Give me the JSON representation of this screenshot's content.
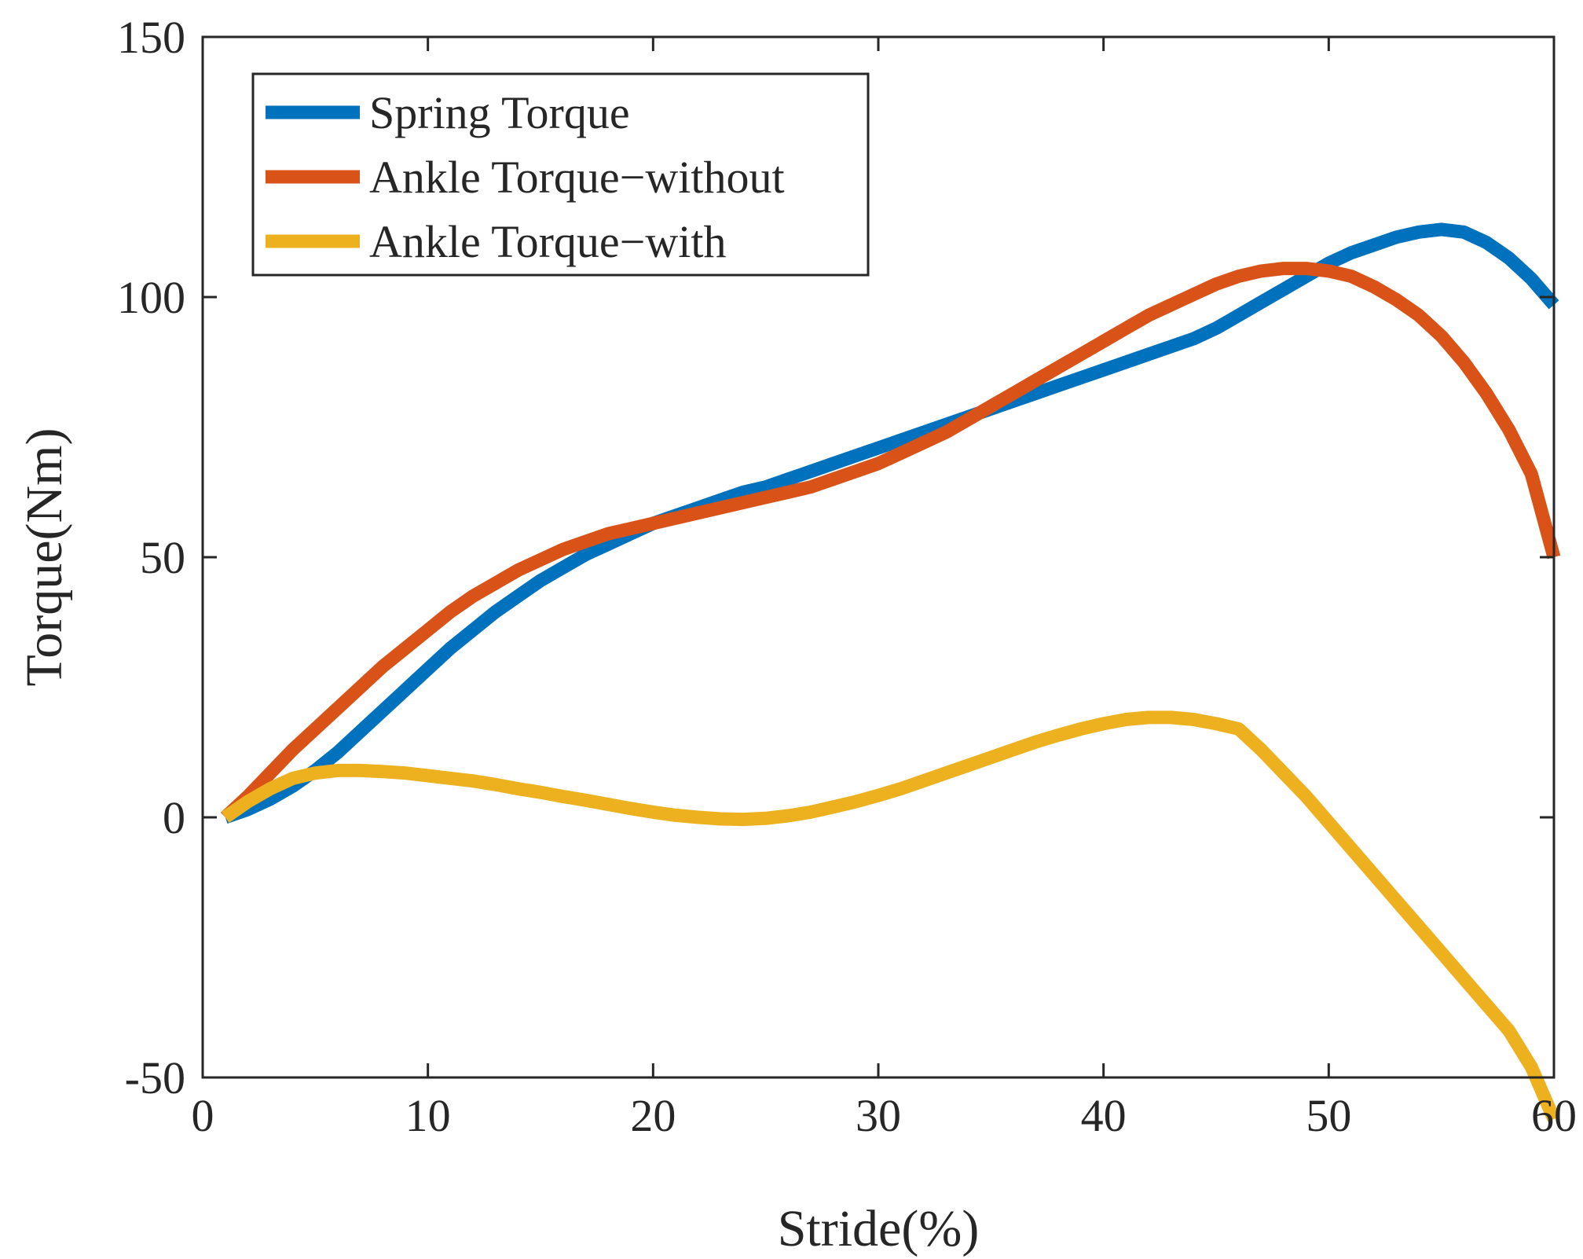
{
  "chart_data": {
    "type": "line",
    "title": "",
    "xlabel": "Stride(%)",
    "ylabel": "Torque(Nm)",
    "xlim": [
      0,
      60
    ],
    "ylim": [
      -50,
      150
    ],
    "xticks": [
      0,
      10,
      20,
      30,
      40,
      50,
      60
    ],
    "xtick_labels": [
      "0",
      "10",
      "20",
      "30",
      "40",
      "50",
      "60"
    ],
    "yticks": [
      -50,
      0,
      50,
      100,
      150
    ],
    "ytick_labels": [
      "-50",
      "0",
      "50",
      "100",
      "150"
    ],
    "grid": false,
    "legend_position": "top-left",
    "x": [
      1,
      2,
      3,
      4,
      5,
      6,
      7,
      8,
      9,
      10,
      11,
      12,
      13,
      14,
      15,
      16,
      17,
      18,
      19,
      20,
      21,
      22,
      23,
      24,
      25,
      26,
      27,
      28,
      29,
      30,
      31,
      32,
      33,
      34,
      35,
      36,
      37,
      38,
      39,
      40,
      41,
      42,
      43,
      44,
      45,
      46,
      47,
      48,
      49,
      50,
      51,
      52,
      53,
      54,
      55,
      56,
      57,
      58,
      59,
      60
    ],
    "series": [
      {
        "name": "Spring Torque",
        "color": "#0072BD",
        "values": [
          0,
          1.5,
          3.5,
          6,
          9,
          12.5,
          16.5,
          20.5,
          24.5,
          28.5,
          32.5,
          36,
          39.5,
          42.5,
          45.5,
          48,
          50.5,
          52.5,
          54.5,
          56.5,
          58,
          59.5,
          61,
          62.5,
          63.5,
          65,
          66.5,
          68,
          69.5,
          71,
          72.5,
          74,
          75.5,
          77,
          78.5,
          80,
          81.5,
          83,
          84.5,
          86,
          87.5,
          89,
          90.5,
          92,
          94,
          96.5,
          99,
          101.5,
          104,
          106.5,
          108.5,
          110,
          111.5,
          112.5,
          113,
          112.5,
          110.5,
          107.5,
          103.5,
          98.5
        ]
      },
      {
        "name": "Ankle Torque−without",
        "color": "#D95319",
        "values": [
          0,
          4,
          8.5,
          13,
          17,
          21,
          25,
          29,
          32.5,
          36,
          39.5,
          42.5,
          45,
          47.5,
          49.5,
          51.5,
          53,
          54.5,
          55.5,
          56.5,
          57.5,
          58.5,
          59.5,
          60.5,
          61.5,
          62.5,
          63.5,
          65,
          66.5,
          68,
          70,
          72,
          74,
          76.5,
          79,
          81.5,
          84,
          86.5,
          89,
          91.5,
          94,
          96.5,
          98.5,
          100.5,
          102.5,
          104,
          105,
          105.5,
          105.5,
          105,
          104,
          102,
          99.5,
          96.5,
          92.5,
          87.5,
          81.5,
          74.5,
          66,
          50
        ]
      },
      {
        "name": "Ankle Torque−with",
        "color": "#EDB120",
        "values": [
          0,
          3,
          5.5,
          7.5,
          8.5,
          9,
          9,
          8.8,
          8.5,
          8,
          7.5,
          7,
          6.3,
          5.5,
          4.8,
          4,
          3.3,
          2.5,
          1.7,
          1,
          0.4,
          0,
          -0.3,
          -0.4,
          -0.2,
          0.3,
          1,
          2,
          3,
          4.2,
          5.5,
          7,
          8.5,
          10,
          11.5,
          13,
          14.5,
          15.8,
          17,
          18,
          18.8,
          19.2,
          19.2,
          18.8,
          18,
          17,
          13,
          8.5,
          4,
          -1,
          -6,
          -11,
          -16,
          -21,
          -26,
          -31,
          -36,
          -41,
          -48,
          -58
        ]
      }
    ]
  }
}
